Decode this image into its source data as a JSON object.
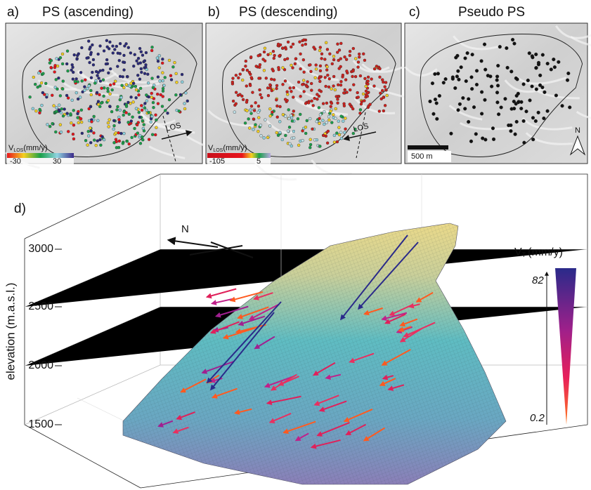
{
  "panels": [
    {
      "label": "a)",
      "title": "PS (ascending)",
      "colorbar": {
        "symbol": "V",
        "subscript": "LOS",
        "unit": "(mm/y)",
        "min": -30,
        "max": 30
      },
      "arrow": "LOS"
    },
    {
      "label": "b)",
      "title": "PS (descending)",
      "colorbar": {
        "symbol": "V",
        "subscript": "LOS",
        "unit": "(mm/y)",
        "min": -105,
        "max": 5
      },
      "arrow": "LOS"
    },
    {
      "label": "c)",
      "title": "Pseudo PS",
      "scale_bar": "500 m",
      "north": "N"
    }
  ],
  "panel_d": {
    "label": "d)",
    "north": "N",
    "y_axis_label": "elevation (m.a.s.l.)",
    "yticks": [
      3000,
      2500,
      2000,
      1500
    ],
    "colorbar": {
      "symbol": "V",
      "subscript": "T",
      "unit": "(mm/y)",
      "max": 82,
      "min": 0.2
    }
  }
}
